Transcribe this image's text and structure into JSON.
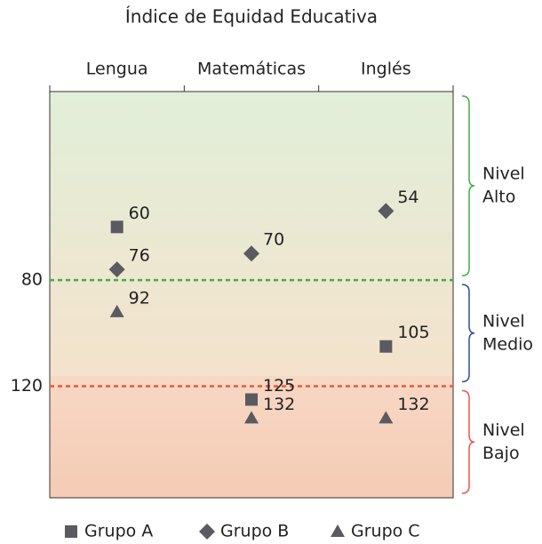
{
  "chart_data": {
    "type": "scatter",
    "title": "Índice de Equidad Educativa",
    "categories": [
      "Lengua",
      "Matemáticas",
      "Inglés"
    ],
    "series": [
      {
        "name": "Grupo A",
        "marker": "square",
        "color": "#5a5a60",
        "values": [
          60,
          125,
          105
        ]
      },
      {
        "name": "Grupo B",
        "marker": "diamond",
        "color": "#5a5a60",
        "values": [
          76,
          70,
          54
        ]
      },
      {
        "name": "Grupo C",
        "marker": "triangle",
        "color": "#5a5a60",
        "values": [
          92,
          132,
          132
        ]
      }
    ],
    "ylim": [
      9,
      162
    ],
    "y_inverted": true,
    "yticks": [
      80,
      120
    ],
    "ytick_line_colors": [
      "#3fae49",
      "#f0553a"
    ],
    "bands": [
      {
        "name": [
          "Nivel",
          "Alto"
        ],
        "color": "#3fae49"
      },
      {
        "name": [
          "Nivel",
          "Medio"
        ],
        "color": "#2f4f9a"
      },
      {
        "name": [
          "Nivel",
          "Bajo"
        ],
        "color": "#e8564a"
      }
    ],
    "legend": "bottom"
  }
}
